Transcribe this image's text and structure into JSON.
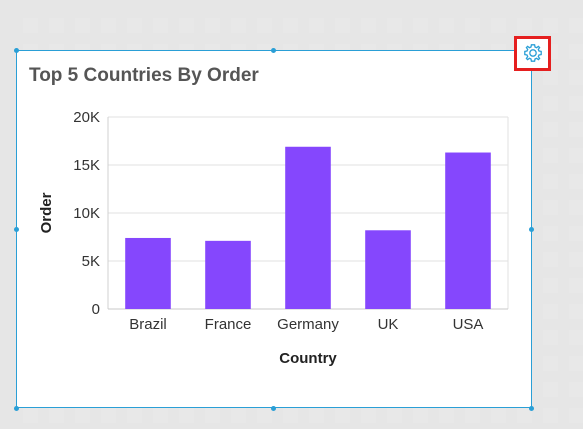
{
  "widget": {
    "title": "Top 5 Countries By Order"
  },
  "toolbar": {
    "settings_icon": "gear-icon"
  },
  "colors": {
    "bar": "#8547fd",
    "selection_border": "#2a9fd6",
    "highlight_box": "#e51f1f"
  },
  "chart_data": {
    "type": "bar",
    "title": "Top 5 Countries By Order",
    "xlabel": "Country",
    "ylabel": "Order",
    "categories": [
      "Brazil",
      "France",
      "Germany",
      "UK",
      "USA"
    ],
    "values": [
      7400,
      7100,
      16900,
      8200,
      16300
    ],
    "ylim": [
      0,
      20000
    ],
    "yticks": [
      "0",
      "5K",
      "10K",
      "15K",
      "20K"
    ],
    "ytick_values": [
      0,
      5000,
      10000,
      15000,
      20000
    ],
    "grid": true,
    "legend": "none"
  }
}
